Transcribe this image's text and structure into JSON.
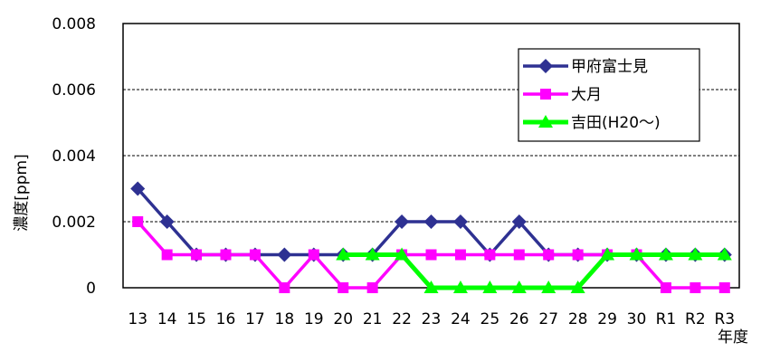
{
  "chart_data": {
    "type": "line",
    "title": "",
    "xlabel": "年度",
    "ylabel": "濃度[ppm]",
    "ylim": [
      0,
      0.008
    ],
    "yticks": [
      "0",
      "0.002",
      "0.004",
      "0.006",
      "0.008"
    ],
    "categories": [
      "13",
      "14",
      "15",
      "16",
      "17",
      "18",
      "19",
      "20",
      "21",
      "22",
      "23",
      "24",
      "25",
      "26",
      "27",
      "28",
      "29",
      "30",
      "R1",
      "R2",
      "R3"
    ],
    "grid": "horizontal dashed",
    "legend_position": "top-right",
    "series": [
      {
        "name": "甲府富士見",
        "color": "#2e3192",
        "marker": "diamond",
        "values": [
          0.003,
          0.002,
          0.001,
          0.001,
          0.001,
          0.001,
          0.001,
          0.001,
          0.001,
          0.002,
          0.002,
          0.002,
          0.001,
          0.002,
          0.001,
          0.001,
          0.001,
          0.001,
          0.001,
          0.001,
          0.001
        ]
      },
      {
        "name": "大月",
        "color": "#ff00ff",
        "marker": "square",
        "values": [
          0.002,
          0.001,
          0.001,
          0.001,
          0.001,
          0,
          0.001,
          0,
          0,
          0.001,
          0.001,
          0.001,
          0.001,
          0.001,
          0.001,
          0.001,
          0.001,
          0.001,
          0,
          0,
          0
        ]
      },
      {
        "name": "吉田(H20～)",
        "color": "#00ff00",
        "marker": "triangle",
        "values": [
          null,
          null,
          null,
          null,
          null,
          null,
          null,
          0.001,
          0.001,
          0.001,
          0,
          0,
          0,
          0,
          0,
          0,
          0.001,
          0.001,
          0.001,
          0.001,
          0.001
        ]
      }
    ]
  }
}
